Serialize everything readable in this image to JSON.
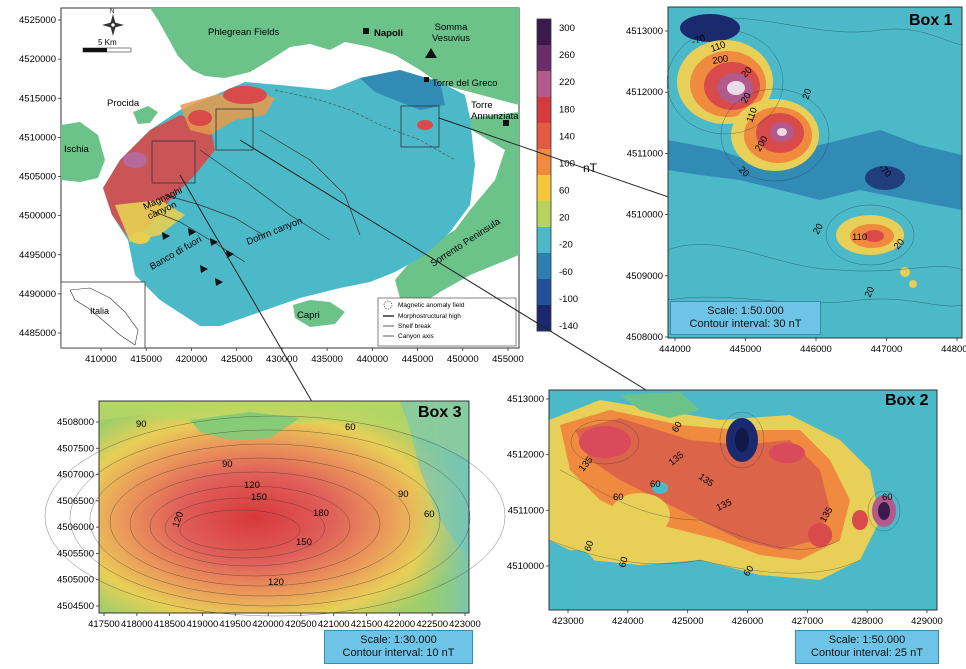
{
  "main_map": {
    "y_ticks": [
      "4525000",
      "4520000",
      "4515000",
      "4510000",
      "4505000",
      "4500000",
      "4495000",
      "4490000",
      "4485000"
    ],
    "x_ticks": [
      "410000",
      "415000",
      "420000",
      "425000",
      "430000",
      "435000",
      "440000",
      "445000",
      "450000",
      "455000"
    ],
    "places": {
      "phlegrean": "Phlegrean Fields",
      "napoli": "Napoli",
      "somma": "Somma\nVesuvius",
      "torre_greco": "Torre del Greco",
      "torre_ann": "Torre\nAnnunziata",
      "procida": "Procida",
      "ischia": "Ischia",
      "sorrento": "Sorrento Peninsula",
      "capri": "Capri",
      "magnaghi": "Magnaghi\ncanyon",
      "banco": "Banco di fuori",
      "dohrn": "Dohrn canyon",
      "italia": "Italia"
    },
    "scale_label": "5 Km",
    "north_label": "N",
    "legend": [
      "Magnetic anomaly field",
      "Morphostructural high",
      "Shelf break",
      "Canyon axis"
    ]
  },
  "colorbar": {
    "unit": "nT",
    "labels": [
      "300",
      "260",
      "220",
      "180",
      "140",
      "100",
      "60",
      "20",
      "-20",
      "-60",
      "-100",
      "-140"
    ],
    "colors": [
      "#3b1b4e",
      "#6b2c6a",
      "#b25a8c",
      "#d63a3a",
      "#e35a42",
      "#ef8a3e",
      "#f2c73b",
      "#b6d35a",
      "#4bb9c8",
      "#2c7fb0",
      "#23509a",
      "#1b2a6e"
    ]
  },
  "box1": {
    "title": "Box 1",
    "y_ticks": [
      "4513000",
      "4512000",
      "4511000",
      "4510000",
      "4509000",
      "4508000"
    ],
    "x_ticks": [
      "444000",
      "445000",
      "446000",
      "447000",
      "448000"
    ],
    "contours": [
      "-70",
      "110",
      "200",
      "20",
      "20",
      "110",
      "200",
      "20",
      "-70",
      "20",
      "110",
      "20",
      "20",
      "20"
    ],
    "scale": "Scale:  1:50.000",
    "interval": "Contour interval:  30 nT"
  },
  "box2": {
    "title": "Box 2",
    "y_ticks": [
      "4513000",
      "4512000",
      "4511000",
      "4510000"
    ],
    "x_ticks": [
      "423000",
      "424000",
      "425000",
      "426000",
      "427000",
      "428000",
      "429000"
    ],
    "contours": [
      "135",
      "60",
      "135",
      "60",
      "135",
      "135",
      "60",
      "60",
      "60",
      "60",
      "135",
      "60"
    ],
    "scale": "Scale:  1:50.000",
    "interval": "Contour interval:  25 nT"
  },
  "box3": {
    "title": "Box 3",
    "y_ticks": [
      "4508000",
      "4507500",
      "4507000",
      "4506500",
      "4506000",
      "4505500",
      "4505000",
      "4504500"
    ],
    "x_ticks": [
      "417500",
      "418000",
      "418500",
      "419000",
      "419500",
      "420000",
      "420500",
      "421000",
      "421500",
      "422000",
      "422500",
      "423000"
    ],
    "contours": [
      "90",
      "60",
      "90",
      "120",
      "150",
      "150",
      "180",
      "120",
      "90",
      "60",
      "120"
    ],
    "scale": "Scale:  1:30.000",
    "interval": "Contour interval:  10 nT"
  }
}
